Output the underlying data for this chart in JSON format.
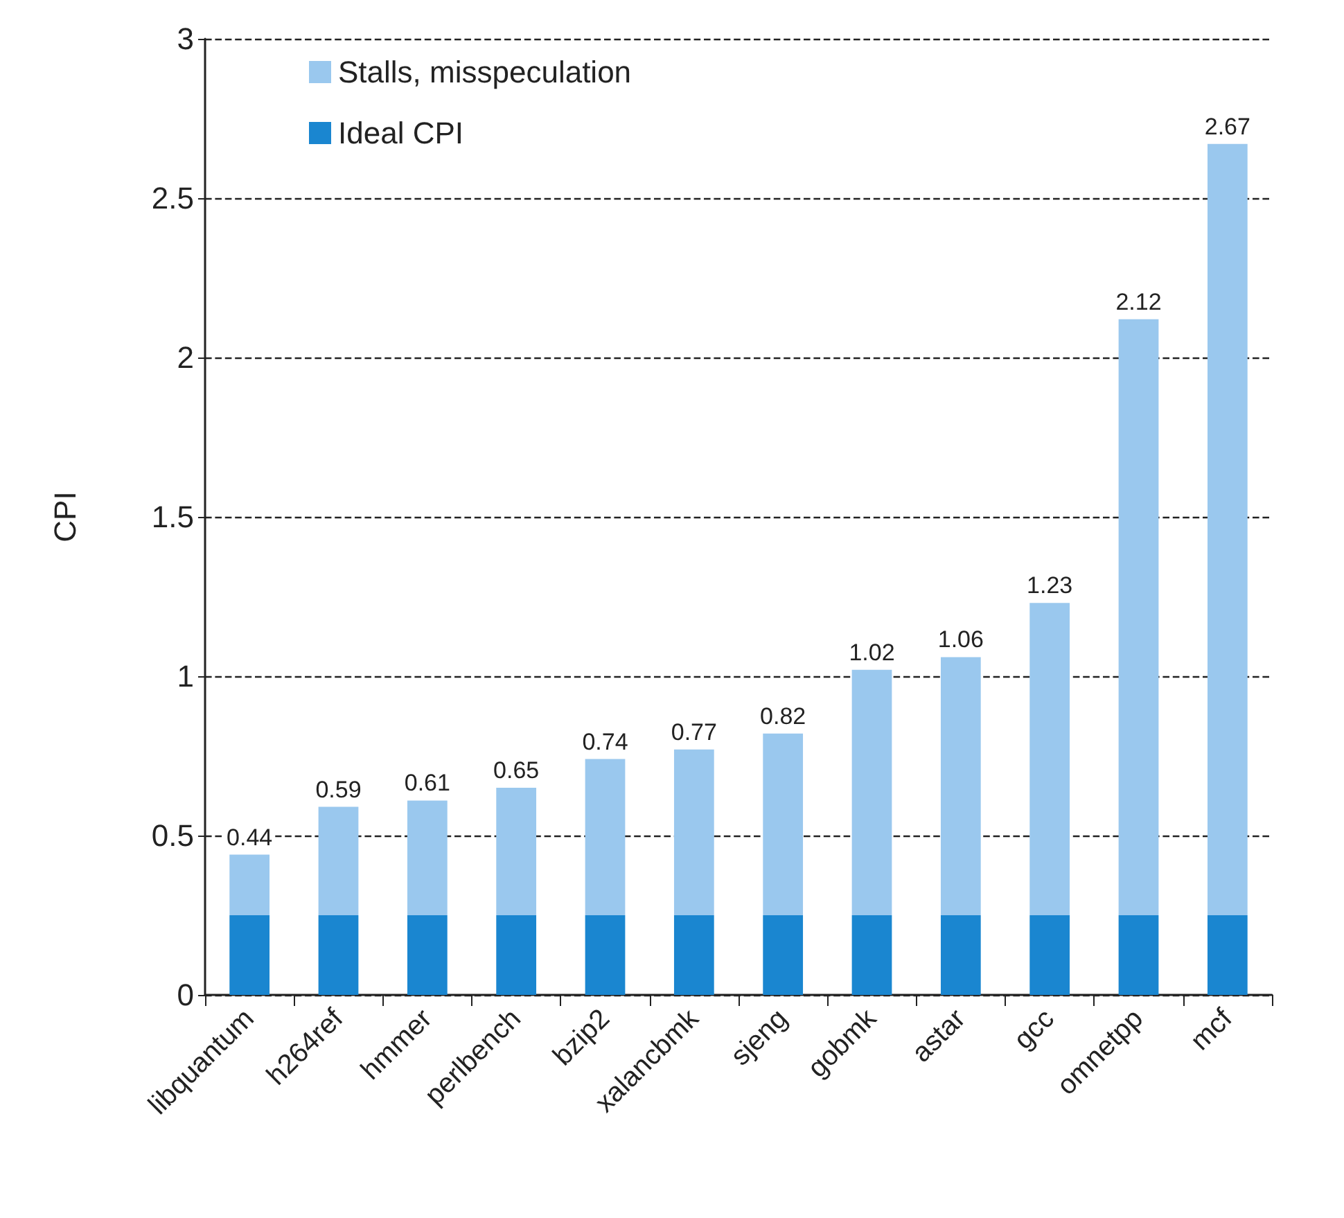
{
  "chart_data": {
    "type": "bar",
    "ylabel": "CPI",
    "stacked": true,
    "categories": [
      "libquantum",
      "h264ref",
      "hmmer",
      "perlbench",
      "bzip2",
      "xalancbmk",
      "sjeng",
      "gobmk",
      "astar",
      "gcc",
      "omnetpp",
      "mcf"
    ],
    "series": [
      {
        "name": "Ideal CPI",
        "color": "#1a86d0",
        "values": [
          0.25,
          0.25,
          0.25,
          0.25,
          0.25,
          0.25,
          0.25,
          0.25,
          0.25,
          0.25,
          0.25,
          0.25
        ]
      },
      {
        "name": "Stalls, misspeculation",
        "color": "#9ac8ee",
        "values": [
          0.19,
          0.34,
          0.36,
          0.4,
          0.49,
          0.52,
          0.57,
          0.77,
          0.81,
          0.98,
          1.87,
          2.42
        ]
      }
    ],
    "totals": [
      "0.44",
      "0.59",
      "0.61",
      "0.65",
      "0.74",
      "0.77",
      "0.82",
      "1.02",
      "1.06",
      "1.23",
      "2.12",
      "2.67"
    ],
    "ylim": [
      0,
      3
    ],
    "yticks": [
      0,
      0.5,
      1,
      1.5,
      2,
      2.5,
      3
    ],
    "grid": "y",
    "legend": "top left"
  }
}
